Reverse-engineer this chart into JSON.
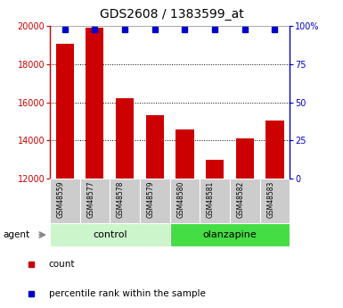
{
  "title": "GDS2608 / 1383599_at",
  "samples": [
    "GSM48559",
    "GSM48577",
    "GSM48578",
    "GSM48579",
    "GSM48580",
    "GSM48581",
    "GSM48582",
    "GSM48583"
  ],
  "counts": [
    19100,
    19900,
    16200,
    15350,
    14600,
    13000,
    14100,
    15050
  ],
  "groups": [
    {
      "label": "control",
      "indices": [
        0,
        1,
        2,
        3
      ],
      "color": "#ccf5cc"
    },
    {
      "label": "olanzapine",
      "indices": [
        4,
        5,
        6,
        7
      ],
      "color": "#44dd44"
    }
  ],
  "bar_color": "#cc0000",
  "dot_color": "#0000cc",
  "ylim_left": [
    12000,
    20000
  ],
  "ylim_right": [
    0,
    100
  ],
  "yticks_left": [
    12000,
    14000,
    16000,
    18000,
    20000
  ],
  "yticks_right": [
    0,
    25,
    50,
    75,
    100
  ],
  "yticklabels_right": [
    "0",
    "25",
    "50",
    "75",
    "100%"
  ],
  "grid_values": [
    14000,
    16000,
    18000
  ],
  "agent_label": "agent",
  "legend_count_label": "count",
  "legend_pct_label": "percentile rank within the sample",
  "left_axis_color": "#cc0000",
  "right_axis_color": "#0000cc",
  "sample_box_color": "#cccccc"
}
